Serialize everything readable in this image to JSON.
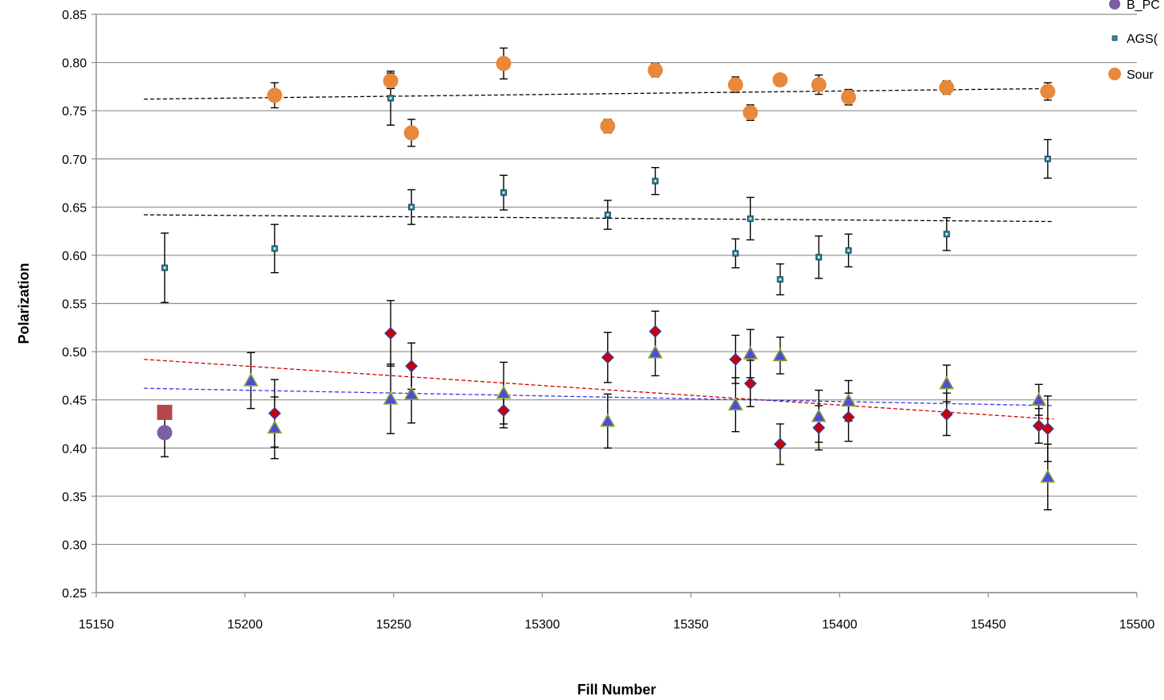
{
  "chart_data": {
    "type": "scatter",
    "title": "",
    "xlabel": "Fill Number",
    "ylabel": "Polarization",
    "xlim": [
      15150,
      15500
    ],
    "ylim": [
      0.25,
      0.85
    ],
    "x_ticks": [
      "15150",
      "15200",
      "15250",
      "15300",
      "15350",
      "15400",
      "15450",
      "15500"
    ],
    "y_ticks": [
      "0.25",
      "0.30",
      "0.35",
      "0.40",
      "0.45",
      "0.50",
      "0.55",
      "0.60",
      "0.65",
      "0.70",
      "0.75",
      "0.80",
      "0.85"
    ],
    "grid": "horizontal",
    "legend_position": "top-right",
    "legend": [
      {
        "label": "B_PC",
        "marker": "circle",
        "color": "#7b5fa0"
      },
      {
        "label": "AGS(",
        "marker": "small-square",
        "color": "#2e8ea6"
      },
      {
        "label": "Sour",
        "marker": "circle",
        "color": "#e8883a"
      }
    ],
    "series": [
      {
        "marker": "circle",
        "color": "#e8883a",
        "stroke": "#e8883a",
        "points": [
          {
            "x": 15210,
            "y": 0.766,
            "err": 0.013
          },
          {
            "x": 15249,
            "y": 0.781,
            "err": 0.008
          },
          {
            "x": 15256,
            "y": 0.727,
            "err": 0.014
          },
          {
            "x": 15287,
            "y": 0.799,
            "err": 0.016
          },
          {
            "x": 15322,
            "y": 0.734,
            "err": 0.007
          },
          {
            "x": 15338,
            "y": 0.792,
            "err": 0.007
          },
          {
            "x": 15365,
            "y": 0.777,
            "err": 0.008
          },
          {
            "x": 15370,
            "y": 0.748,
            "err": 0.008
          },
          {
            "x": 15380,
            "y": 0.782,
            "err": 0.006
          },
          {
            "x": 15393,
            "y": 0.777,
            "err": 0.01
          },
          {
            "x": 15403,
            "y": 0.764,
            "err": 0.008
          },
          {
            "x": 15436,
            "y": 0.774,
            "err": 0.007
          },
          {
            "x": 15470,
            "y": 0.77,
            "err": 0.009
          }
        ]
      },
      {
        "marker": "small-square",
        "color": "#2e8ea6",
        "stroke": "#1a3a4a",
        "points": [
          {
            "x": 15173,
            "y": 0.587,
            "err": 0.036
          },
          {
            "x": 15210,
            "y": 0.607,
            "err": 0.025
          },
          {
            "x": 15249,
            "y": 0.763,
            "err": 0.028
          },
          {
            "x": 15256,
            "y": 0.65,
            "err": 0.018
          },
          {
            "x": 15287,
            "y": 0.665,
            "err": 0.018
          },
          {
            "x": 15322,
            "y": 0.642,
            "err": 0.015
          },
          {
            "x": 15338,
            "y": 0.677,
            "err": 0.014
          },
          {
            "x": 15365,
            "y": 0.602,
            "err": 0.015
          },
          {
            "x": 15370,
            "y": 0.638,
            "err": 0.022
          },
          {
            "x": 15380,
            "y": 0.575,
            "err": 0.016
          },
          {
            "x": 15393,
            "y": 0.598,
            "err": 0.022
          },
          {
            "x": 15403,
            "y": 0.605,
            "err": 0.017
          },
          {
            "x": 15436,
            "y": 0.622,
            "err": 0.017
          },
          {
            "x": 15470,
            "y": 0.7,
            "err": 0.02
          }
        ]
      },
      {
        "marker": "diamond",
        "color": "#cc0000",
        "stroke": "#3a3aa0",
        "points": [
          {
            "x": 15210,
            "y": 0.436,
            "err": 0.035
          },
          {
            "x": 15249,
            "y": 0.519,
            "err": 0.034
          },
          {
            "x": 15256,
            "y": 0.485,
            "err": 0.024
          },
          {
            "x": 15287,
            "y": 0.439,
            "err": 0.018
          },
          {
            "x": 15322,
            "y": 0.494,
            "err": 0.026
          },
          {
            "x": 15338,
            "y": 0.521,
            "err": 0.021
          },
          {
            "x": 15365,
            "y": 0.492,
            "err": 0.025
          },
          {
            "x": 15370,
            "y": 0.467,
            "err": 0.024
          },
          {
            "x": 15380,
            "y": 0.404,
            "err": 0.021
          },
          {
            "x": 15393,
            "y": 0.421,
            "err": 0.023
          },
          {
            "x": 15403,
            "y": 0.432,
            "err": 0.025
          },
          {
            "x": 15436,
            "y": 0.435,
            "err": 0.022
          },
          {
            "x": 15467,
            "y": 0.423,
            "err": 0.018
          },
          {
            "x": 15470,
            "y": 0.42,
            "err": 0.034
          }
        ]
      },
      {
        "marker": "triangle",
        "color": "#4b4bdd",
        "stroke": "#8aa030",
        "points": [
          {
            "x": 15202,
            "y": 0.47,
            "err": 0.029
          },
          {
            "x": 15210,
            "y": 0.421,
            "err": 0.032
          },
          {
            "x": 15249,
            "y": 0.451,
            "err": 0.036
          },
          {
            "x": 15256,
            "y": 0.456,
            "err": 0.03
          },
          {
            "x": 15287,
            "y": 0.457,
            "err": 0.032
          },
          {
            "x": 15322,
            "y": 0.428,
            "err": 0.028
          },
          {
            "x": 15338,
            "y": 0.499,
            "err": 0.024
          },
          {
            "x": 15365,
            "y": 0.445,
            "err": 0.028
          },
          {
            "x": 15370,
            "y": 0.498,
            "err": 0.025
          },
          {
            "x": 15380,
            "y": 0.496,
            "err": 0.019
          },
          {
            "x": 15393,
            "y": 0.433,
            "err": 0.027
          },
          {
            "x": 15403,
            "y": 0.449,
            "err": 0.021
          },
          {
            "x": 15436,
            "y": 0.467,
            "err": 0.019
          },
          {
            "x": 15467,
            "y": 0.45,
            "err": 0.016
          },
          {
            "x": 15470,
            "y": 0.37,
            "err": 0.034
          }
        ]
      },
      {
        "marker": "circle",
        "color": "#7b5fa0",
        "stroke": "#7b5fa0",
        "points": [
          {
            "x": 15173,
            "y": 0.416,
            "err": 0.025
          }
        ]
      },
      {
        "marker": "square",
        "color": "#b5474a",
        "stroke": "#b5474a",
        "points": [
          {
            "x": 15173,
            "y": 0.437,
            "err": 0.0
          }
        ]
      }
    ],
    "trendlines": [
      {
        "color": "#000000",
        "x": [
          15166,
          15472
        ],
        "y": [
          0.762,
          0.773
        ]
      },
      {
        "color": "#000000",
        "x": [
          15166,
          15472
        ],
        "y": [
          0.642,
          0.635
        ]
      },
      {
        "color": "#cc0000",
        "x": [
          15166,
          15472
        ],
        "y": [
          0.492,
          0.43
        ]
      },
      {
        "color": "#3333ee",
        "x": [
          15166,
          15472
        ],
        "y": [
          0.462,
          0.444
        ]
      }
    ]
  }
}
